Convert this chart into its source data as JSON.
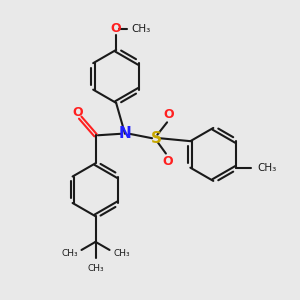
{
  "bg_color": "#e9e9e9",
  "bond_color": "#1a1a1a",
  "N_color": "#2020ff",
  "O_color": "#ff2020",
  "S_color": "#c8a800",
  "line_width": 1.5,
  "figsize": [
    3.0,
    3.0
  ],
  "dpi": 100,
  "xlim": [
    0,
    10
  ],
  "ylim": [
    0,
    10
  ]
}
